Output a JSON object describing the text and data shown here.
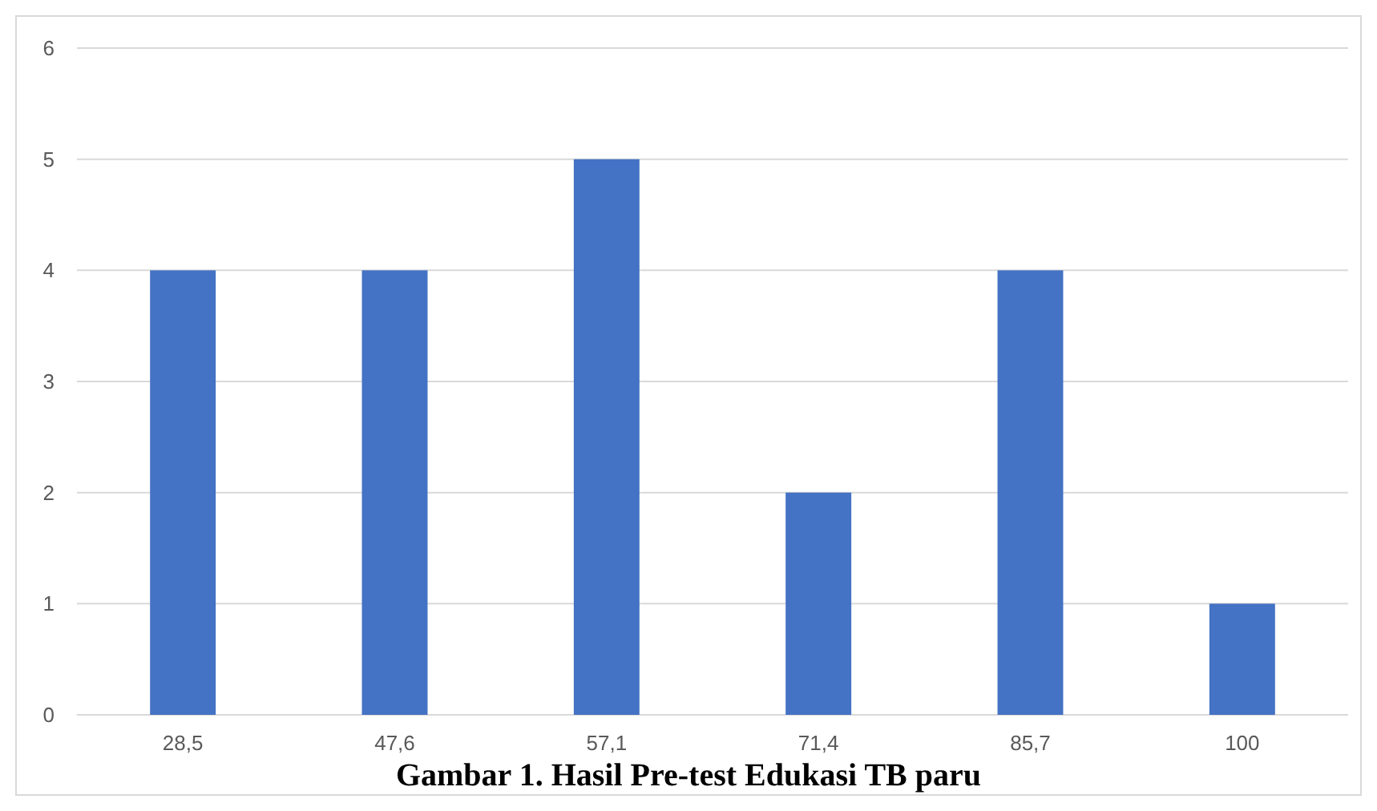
{
  "chart_data": {
    "type": "bar",
    "title": "Gambar 1. Hasil Pre-test Edukasi TB paru",
    "categories": [
      "28,5",
      "47,6",
      "57,1",
      "71,4",
      "85,7",
      "100"
    ],
    "values": [
      4,
      4,
      5,
      2,
      4,
      1
    ],
    "color": "#4472c4",
    "ylim": [
      0,
      6
    ],
    "yticks": [
      0,
      1,
      2,
      3,
      4,
      5,
      6
    ],
    "grid": "y"
  }
}
